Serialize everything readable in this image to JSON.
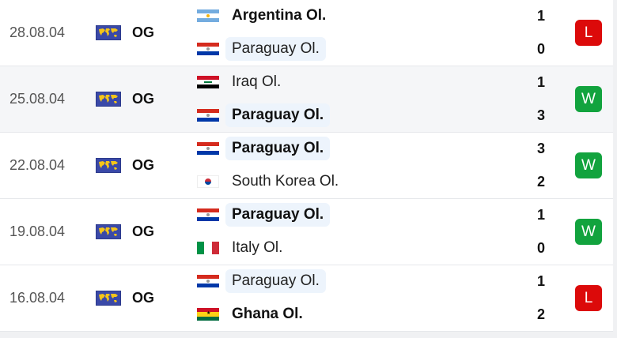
{
  "colors": {
    "win": "#12a33e",
    "loss": "#dc0a0a",
    "highlight_bg": "#edf4fc"
  },
  "matches": [
    {
      "date": "28.08.04",
      "competition": "OG",
      "competition_icon": "world-map-icon",
      "home": {
        "name": "Argentina Ol.",
        "flag": "argentina",
        "bold": true,
        "highlight": false
      },
      "away": {
        "name": "Paraguay Ol.",
        "flag": "paraguay",
        "bold": false,
        "highlight": true
      },
      "home_score": "1",
      "away_score": "0",
      "result": "L"
    },
    {
      "date": "25.08.04",
      "competition": "OG",
      "competition_icon": "world-map-icon",
      "home": {
        "name": "Iraq Ol.",
        "flag": "iraq",
        "bold": false,
        "highlight": false
      },
      "away": {
        "name": "Paraguay Ol.",
        "flag": "paraguay",
        "bold": true,
        "highlight": true
      },
      "home_score": "1",
      "away_score": "3",
      "result": "W"
    },
    {
      "date": "22.08.04",
      "competition": "OG",
      "competition_icon": "world-map-icon",
      "home": {
        "name": "Paraguay Ol.",
        "flag": "paraguay",
        "bold": true,
        "highlight": true
      },
      "away": {
        "name": "South Korea Ol.",
        "flag": "south-korea",
        "bold": false,
        "highlight": false
      },
      "home_score": "3",
      "away_score": "2",
      "result": "W"
    },
    {
      "date": "19.08.04",
      "competition": "OG",
      "competition_icon": "world-map-icon",
      "home": {
        "name": "Paraguay Ol.",
        "flag": "paraguay",
        "bold": true,
        "highlight": true
      },
      "away": {
        "name": "Italy Ol.",
        "flag": "italy",
        "bold": false,
        "highlight": false
      },
      "home_score": "1",
      "away_score": "0",
      "result": "W"
    },
    {
      "date": "16.08.04",
      "competition": "OG",
      "competition_icon": "world-map-icon",
      "home": {
        "name": "Paraguay Ol.",
        "flag": "paraguay",
        "bold": false,
        "highlight": true
      },
      "away": {
        "name": "Ghana Ol.",
        "flag": "ghana",
        "bold": true,
        "highlight": false
      },
      "home_score": "1",
      "away_score": "2",
      "result": "L"
    }
  ]
}
